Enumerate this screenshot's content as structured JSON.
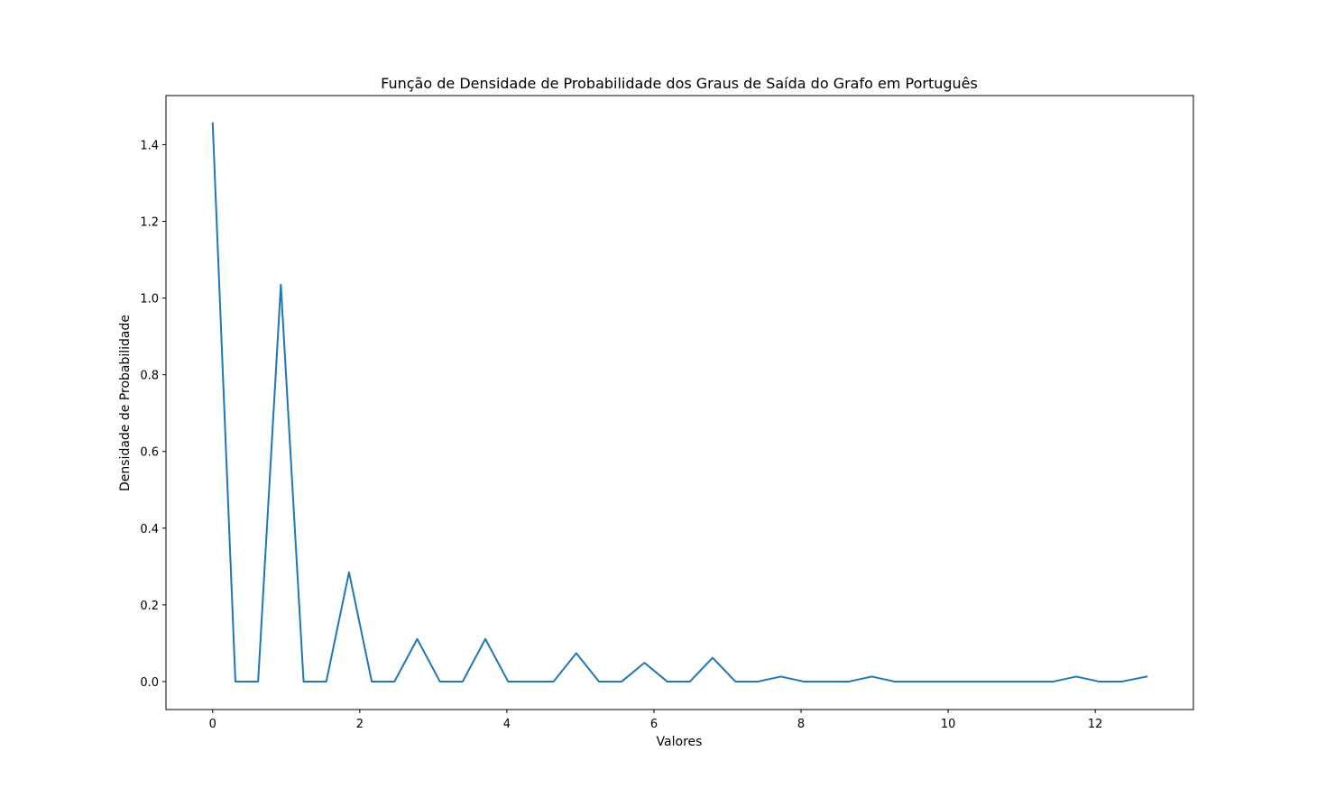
{
  "chart_data": {
    "type": "line",
    "title": "Função de Densidade de Probabilidade dos Graus de Saída do Grafo em Português",
    "xlabel": "Valores",
    "ylabel": "Densidade de Probabilidade",
    "xlim": [
      -0.635,
      13.335
    ],
    "ylim": [
      -0.073,
      1.528
    ],
    "xticks": [
      0,
      2,
      4,
      6,
      8,
      10,
      12
    ],
    "xtick_labels": [
      "0",
      "2",
      "4",
      "6",
      "8",
      "10",
      "12"
    ],
    "yticks": [
      0.0,
      0.2,
      0.4,
      0.6,
      0.8,
      1.0,
      1.2,
      1.4
    ],
    "ytick_labels": [
      "0.0",
      "0.2",
      "0.4",
      "0.6",
      "0.8",
      "1.0",
      "1.2",
      "1.4"
    ],
    "grid": false,
    "legend": false,
    "series": [
      {
        "color": "#1f77b4",
        "x": [
          0,
          0.309,
          0.618,
          0.927,
          1.236,
          1.545,
          1.854,
          2.163,
          2.472,
          2.781,
          3.09,
          3.399,
          3.708,
          4.017,
          4.326,
          4.635,
          4.944,
          5.253,
          5.562,
          5.871,
          6.18,
          6.489,
          6.798,
          7.107,
          7.416,
          7.725,
          8.034,
          8.343,
          8.652,
          8.961,
          9.27,
          9.579,
          9.888,
          10.197,
          10.506,
          10.815,
          11.124,
          11.433,
          11.742,
          12.051,
          12.36,
          12.7
        ],
        "y": [
          1.456,
          0.0,
          0.0,
          1.035,
          0.0,
          0.0,
          0.285,
          0.0,
          0.0,
          0.111,
          0.0,
          0.0,
          0.111,
          0.0,
          0.0,
          0.0,
          0.074,
          0.0,
          0.0,
          0.049,
          0.0,
          0.0,
          0.062,
          0.0,
          0.0,
          0.013,
          0.0,
          0.0,
          0.0,
          0.013,
          0.0,
          0.0,
          0.0,
          0.0,
          0.0,
          0.0,
          0.0,
          0.0,
          0.013,
          0.0,
          0.0,
          0.013
        ]
      }
    ]
  }
}
